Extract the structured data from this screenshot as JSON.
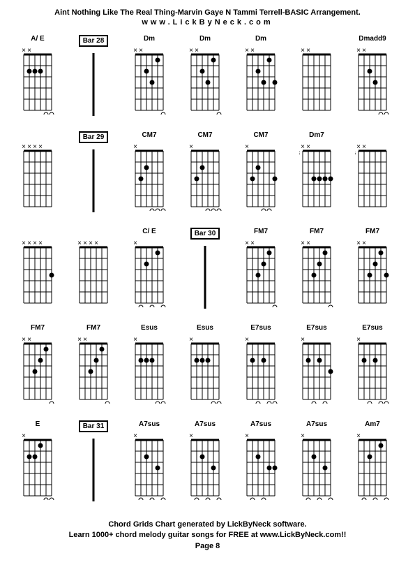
{
  "title": "Aint Nothing Like The Real Thing-Marvin Gaye N Tammi Terrell-BASIC Arrangement.",
  "subtitle": "www.LickByNeck.com",
  "footer_line1": "Chord Grids Chart generated by LickByNeck software.",
  "footer_line2": "Learn 1000+ chord melody guitar songs for FREE at www.LickByNeck.com!!",
  "footer_page": "Page 8",
  "colors": {
    "background": "#ffffff",
    "text": "#000000",
    "grid": "#000000"
  },
  "rows": [
    [
      {
        "type": "chord",
        "name": "A/ E",
        "muted": [
          0,
          1
        ],
        "dots": [
          [
            2,
            1
          ],
          [
            2,
            2
          ],
          [
            2,
            3
          ]
        ],
        "open": [
          4,
          5
        ]
      },
      {
        "type": "bar",
        "label": "Bar 28"
      },
      {
        "type": "chord",
        "name": "Dm",
        "muted": [
          0,
          1
        ],
        "dots": [
          [
            2,
            2
          ],
          [
            3,
            3
          ],
          [
            1,
            4
          ]
        ],
        "open": [
          5
        ]
      },
      {
        "type": "chord",
        "name": "Dm",
        "muted": [
          0,
          1
        ],
        "dots": [
          [
            2,
            2
          ],
          [
            3,
            3
          ],
          [
            1,
            4
          ]
        ],
        "open": [
          5
        ]
      },
      {
        "type": "chord",
        "name": "Dm",
        "muted": [
          0,
          1
        ],
        "dots": [
          [
            2,
            2
          ],
          [
            3,
            3
          ],
          [
            1,
            4
          ],
          [
            3,
            5
          ]
        ],
        "open": []
      },
      {
        "type": "chord",
        "name": "",
        "muted": [
          0,
          1
        ],
        "dots": [],
        "open": []
      },
      {
        "type": "chord",
        "name": "Dmadd9",
        "muted": [
          0,
          1
        ],
        "dots": [
          [
            2,
            2
          ],
          [
            3,
            3
          ]
        ],
        "open": [
          4,
          5
        ]
      }
    ],
    [
      {
        "type": "chord",
        "name": "",
        "muted": [
          0,
          1,
          2,
          3
        ],
        "dots": [],
        "open": []
      },
      {
        "type": "bar",
        "label": "Bar 29"
      },
      {
        "type": "chord",
        "name": "CM7",
        "muted": [
          0
        ],
        "dots": [
          [
            3,
            1
          ],
          [
            2,
            2
          ]
        ],
        "open": [
          3,
          4,
          5
        ]
      },
      {
        "type": "chord",
        "name": "CM7",
        "muted": [
          0
        ],
        "dots": [
          [
            3,
            1
          ],
          [
            2,
            2
          ]
        ],
        "open": [
          3,
          4,
          5
        ]
      },
      {
        "type": "chord",
        "name": "CM7",
        "muted": [
          0
        ],
        "dots": [
          [
            3,
            1
          ],
          [
            2,
            2
          ],
          [
            3,
            5
          ]
        ],
        "open": [
          3,
          4
        ]
      },
      {
        "type": "chord",
        "name": "Dm7",
        "muted": [
          0,
          1
        ],
        "fret": "3",
        "dots": [
          [
            3,
            2
          ],
          [
            3,
            3
          ],
          [
            3,
            4
          ],
          [
            3,
            5
          ]
        ],
        "open": []
      },
      {
        "type": "chord",
        "name": "",
        "muted": [
          0,
          1
        ],
        "fret": "6",
        "dots": [],
        "open": []
      }
    ],
    [
      {
        "type": "chord",
        "name": "",
        "muted": [
          0,
          1,
          2,
          3
        ],
        "dots": [
          [
            3,
            5
          ]
        ],
        "open": []
      },
      {
        "type": "chord",
        "name": "",
        "muted": [
          0,
          1,
          2,
          3
        ],
        "dots": [],
        "open": []
      },
      {
        "type": "chord",
        "name": "C/ E",
        "muted": [
          0
        ],
        "dots": [
          [
            2,
            2
          ],
          [
            1,
            4
          ]
        ],
        "open": [
          1,
          3,
          5
        ]
      },
      {
        "type": "bar",
        "label": "Bar 30"
      },
      {
        "type": "chord",
        "name": "FM7",
        "muted": [
          0,
          1
        ],
        "dots": [
          [
            3,
            2
          ],
          [
            2,
            3
          ],
          [
            1,
            4
          ]
        ],
        "open": [
          5
        ]
      },
      {
        "type": "chord",
        "name": "FM7",
        "muted": [
          0,
          1
        ],
        "dots": [
          [
            3,
            2
          ],
          [
            2,
            3
          ],
          [
            1,
            4
          ]
        ],
        "open": [
          5
        ]
      },
      {
        "type": "chord",
        "name": "FM7",
        "muted": [
          0,
          1
        ],
        "dots": [
          [
            3,
            2
          ],
          [
            2,
            3
          ],
          [
            1,
            4
          ],
          [
            3,
            5
          ]
        ],
        "open": []
      }
    ],
    [
      {
        "type": "chord",
        "name": "FM7",
        "muted": [
          0,
          1
        ],
        "dots": [
          [
            3,
            2
          ],
          [
            2,
            3
          ],
          [
            1,
            4
          ]
        ],
        "open": [
          5
        ]
      },
      {
        "type": "chord",
        "name": "FM7",
        "muted": [
          0,
          1
        ],
        "dots": [
          [
            3,
            2
          ],
          [
            2,
            3
          ],
          [
            1,
            4
          ]
        ],
        "open": [
          5
        ]
      },
      {
        "type": "chord",
        "name": "Esus",
        "muted": [
          0
        ],
        "dots": [
          [
            2,
            1
          ],
          [
            2,
            2
          ],
          [
            2,
            3
          ]
        ],
        "open": [
          4,
          5
        ]
      },
      {
        "type": "chord",
        "name": "Esus",
        "muted": [
          0
        ],
        "dots": [
          [
            2,
            1
          ],
          [
            2,
            2
          ],
          [
            2,
            3
          ]
        ],
        "open": [
          4,
          5
        ]
      },
      {
        "type": "chord",
        "name": "E7sus",
        "muted": [
          0
        ],
        "dots": [
          [
            2,
            1
          ],
          [
            2,
            3
          ]
        ],
        "open": [
          2,
          4,
          5
        ]
      },
      {
        "type": "chord",
        "name": "E7sus",
        "muted": [
          0
        ],
        "dots": [
          [
            2,
            1
          ],
          [
            2,
            3
          ],
          [
            3,
            5
          ]
        ],
        "open": [
          2,
          4
        ]
      },
      {
        "type": "chord",
        "name": "E7sus",
        "muted": [
          0
        ],
        "dots": [
          [
            2,
            1
          ],
          [
            2,
            3
          ]
        ],
        "open": [
          2,
          4,
          5
        ]
      }
    ],
    [
      {
        "type": "chord",
        "name": "E",
        "muted": [
          0
        ],
        "dots": [
          [
            2,
            1
          ],
          [
            2,
            2
          ],
          [
            1,
            3
          ]
        ],
        "open": [
          4,
          5
        ]
      },
      {
        "type": "bar",
        "label": "Bar 31"
      },
      {
        "type": "chord",
        "name": "A7sus",
        "muted": [
          0
        ],
        "dots": [
          [
            2,
            2
          ],
          [
            3,
            4
          ]
        ],
        "open": [
          1,
          3,
          5
        ]
      },
      {
        "type": "chord",
        "name": "A7sus",
        "muted": [
          0
        ],
        "dots": [
          [
            2,
            2
          ],
          [
            3,
            4
          ]
        ],
        "open": [
          1,
          3,
          5
        ]
      },
      {
        "type": "chord",
        "name": "A7sus",
        "muted": [
          0
        ],
        "dots": [
          [
            2,
            2
          ],
          [
            3,
            4
          ],
          [
            3,
            5
          ]
        ],
        "open": [
          1,
          3
        ]
      },
      {
        "type": "chord",
        "name": "A7sus",
        "muted": [
          0
        ],
        "dots": [
          [
            2,
            2
          ],
          [
            3,
            4
          ]
        ],
        "open": [
          1,
          3,
          5
        ]
      },
      {
        "type": "chord",
        "name": "Am7",
        "muted": [
          0
        ],
        "dots": [
          [
            2,
            2
          ],
          [
            1,
            4
          ]
        ],
        "open": [
          1,
          3,
          5
        ]
      }
    ]
  ]
}
